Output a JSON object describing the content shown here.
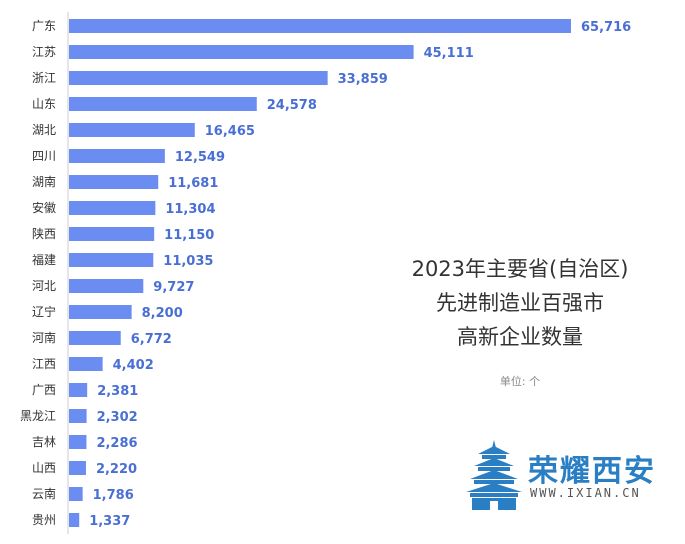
{
  "chart_data": {
    "type": "bar",
    "orientation": "horizontal",
    "title": [
      "2023年主要省(自治区)",
      "先进制造业百强市",
      "高新企业数量"
    ],
    "unit_label": "单位: 个",
    "categories": [
      "广东",
      "江苏",
      "浙江",
      "山东",
      "湖北",
      "四川",
      "湖南",
      "安徽",
      "陕西",
      "福建",
      "河北",
      "辽宁",
      "河南",
      "江西",
      "广西",
      "黑龙江",
      "吉林",
      "山西",
      "云南",
      "贵州"
    ],
    "values": [
      65716,
      45111,
      33859,
      24578,
      16465,
      12549,
      11681,
      11304,
      11150,
      11035,
      9727,
      8200,
      6772,
      4402,
      2381,
      2302,
      2286,
      2220,
      1786,
      1337
    ],
    "value_labels": [
      "65,716",
      "45,111",
      "33,859",
      "24,578",
      "16,465",
      "12,549",
      "11,681",
      "11,304",
      "11,150",
      "11,035",
      "9,727",
      "8,200",
      "6,772",
      "4,402",
      "2,381",
      "2,302",
      "2,286",
      "2,220",
      "1,786",
      "1,337"
    ],
    "xlim": [
      0,
      65716
    ],
    "grid": false,
    "legend": "none",
    "bar_color": "#6b8cf0"
  },
  "logo": {
    "text_cn": "荣耀西安",
    "text_en": "WWW.IXIAN.CN"
  }
}
